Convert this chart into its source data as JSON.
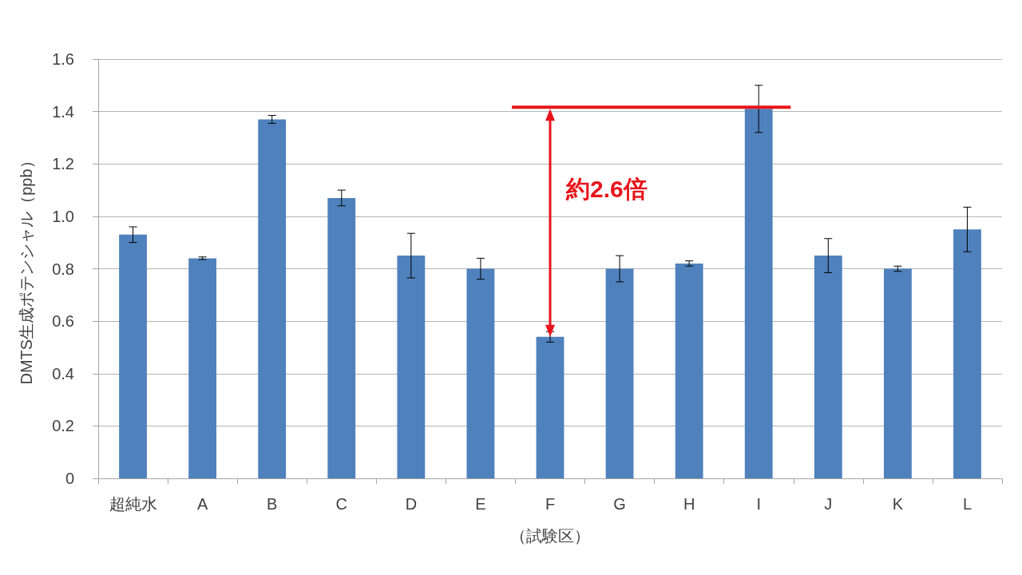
{
  "chart_data": {
    "type": "bar",
    "xlabel": "（試験区）",
    "ylabel": "DMTS生成ポテンシャル（ppb）",
    "categories": [
      "超純水",
      "A",
      "B",
      "C",
      "D",
      "E",
      "F",
      "G",
      "H",
      "I",
      "J",
      "K",
      "L"
    ],
    "values": [
      0.93,
      0.84,
      1.37,
      1.07,
      0.85,
      0.8,
      0.54,
      0.8,
      0.82,
      1.41,
      0.85,
      0.8,
      0.95
    ],
    "errors": [
      0.03,
      0.005,
      0.015,
      0.03,
      0.085,
      0.04,
      0.02,
      0.05,
      0.01,
      0.09,
      0.065,
      0.01,
      0.085
    ],
    "color": "#4f81bd",
    "ylim": [
      0,
      1.6
    ],
    "yticks": [
      0,
      0.2,
      0.4,
      0.6,
      0.8,
      {
        "value": 1,
        "label": "1.0"
      },
      1.2,
      1.4,
      1.6
    ],
    "grid": "y",
    "annotations": [
      "約2.6倍"
    ]
  }
}
